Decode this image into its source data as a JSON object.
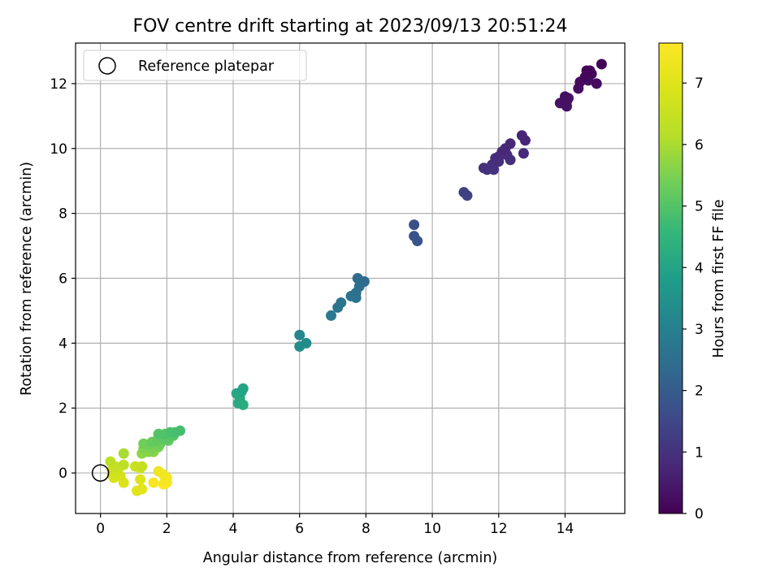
{
  "chart_data": {
    "type": "scatter",
    "title": "FOV centre drift starting at 2023/09/13 20:51:24",
    "xlabel": "Angular distance from reference (arcmin)",
    "ylabel": "Rotation from reference (arcmin)",
    "xlim": [
      -0.75,
      15.8
    ],
    "ylim": [
      -1.25,
      13.25
    ],
    "xticks": [
      0,
      2,
      4,
      6,
      8,
      10,
      12,
      14
    ],
    "yticks": [
      0,
      2,
      4,
      6,
      8,
      10,
      12
    ],
    "grid": true,
    "legend": {
      "position": "top-left",
      "entries": [
        "Reference platepar"
      ]
    },
    "reference_point": {
      "x": 0,
      "y": 0,
      "marker": "open-circle"
    },
    "colorbar": {
      "label": "Hours from first FF file",
      "range": [
        0,
        7.65
      ],
      "ticks": [
        0,
        1,
        2,
        3,
        4,
        5,
        6,
        7
      ],
      "colormap": "viridis"
    },
    "points": [
      {
        "x": 15.1,
        "y": 12.6,
        "c": 0.05
      },
      {
        "x": 14.75,
        "y": 12.4,
        "c": 0.1
      },
      {
        "x": 14.65,
        "y": 12.4,
        "c": 0.12
      },
      {
        "x": 14.6,
        "y": 12.2,
        "c": 0.15
      },
      {
        "x": 14.8,
        "y": 12.3,
        "c": 0.18
      },
      {
        "x": 14.45,
        "y": 12.05,
        "c": 0.2
      },
      {
        "x": 14.95,
        "y": 12.0,
        "c": 0.22
      },
      {
        "x": 14.7,
        "y": 12.1,
        "c": 0.25
      },
      {
        "x": 14.4,
        "y": 11.85,
        "c": 0.28
      },
      {
        "x": 14.0,
        "y": 11.6,
        "c": 0.3
      },
      {
        "x": 14.05,
        "y": 11.45,
        "c": 0.33
      },
      {
        "x": 13.85,
        "y": 11.4,
        "c": 0.35
      },
      {
        "x": 14.05,
        "y": 11.3,
        "c": 0.38
      },
      {
        "x": 14.1,
        "y": 11.55,
        "c": 0.4
      },
      {
        "x": 12.7,
        "y": 10.4,
        "c": 0.7
      },
      {
        "x": 12.8,
        "y": 10.25,
        "c": 0.72
      },
      {
        "x": 12.35,
        "y": 10.15,
        "c": 0.75
      },
      {
        "x": 12.2,
        "y": 10.0,
        "c": 0.78
      },
      {
        "x": 12.1,
        "y": 9.9,
        "c": 0.8
      },
      {
        "x": 12.75,
        "y": 9.85,
        "c": 0.82
      },
      {
        "x": 12.25,
        "y": 9.8,
        "c": 0.85
      },
      {
        "x": 12.0,
        "y": 9.75,
        "c": 0.88
      },
      {
        "x": 11.9,
        "y": 9.7,
        "c": 0.9
      },
      {
        "x": 12.35,
        "y": 9.65,
        "c": 0.92
      },
      {
        "x": 12.0,
        "y": 9.6,
        "c": 0.95
      },
      {
        "x": 11.8,
        "y": 9.5,
        "c": 0.98
      },
      {
        "x": 11.55,
        "y": 9.4,
        "c": 1.0
      },
      {
        "x": 11.85,
        "y": 9.35,
        "c": 1.02
      },
      {
        "x": 11.65,
        "y": 9.35,
        "c": 1.05
      },
      {
        "x": 10.95,
        "y": 8.65,
        "c": 1.3
      },
      {
        "x": 11.05,
        "y": 8.55,
        "c": 1.35
      },
      {
        "x": 9.45,
        "y": 7.65,
        "c": 1.7
      },
      {
        "x": 9.45,
        "y": 7.3,
        "c": 1.75
      },
      {
        "x": 9.55,
        "y": 7.15,
        "c": 1.8
      },
      {
        "x": 7.75,
        "y": 6.0,
        "c": 2.4
      },
      {
        "x": 7.95,
        "y": 5.9,
        "c": 2.45
      },
      {
        "x": 7.8,
        "y": 5.75,
        "c": 2.5
      },
      {
        "x": 7.7,
        "y": 5.55,
        "c": 2.55
      },
      {
        "x": 7.55,
        "y": 5.45,
        "c": 2.6
      },
      {
        "x": 7.7,
        "y": 5.4,
        "c": 2.62
      },
      {
        "x": 7.25,
        "y": 5.25,
        "c": 2.68
      },
      {
        "x": 7.15,
        "y": 5.1,
        "c": 2.72
      },
      {
        "x": 6.95,
        "y": 4.85,
        "c": 2.8
      },
      {
        "x": 6.0,
        "y": 4.25,
        "c": 3.2
      },
      {
        "x": 6.2,
        "y": 4.0,
        "c": 3.3
      },
      {
        "x": 6.0,
        "y": 3.9,
        "c": 3.35
      },
      {
        "x": 4.3,
        "y": 2.6,
        "c": 4.0
      },
      {
        "x": 4.25,
        "y": 2.5,
        "c": 4.05
      },
      {
        "x": 4.1,
        "y": 2.45,
        "c": 4.1
      },
      {
        "x": 4.2,
        "y": 2.3,
        "c": 4.15
      },
      {
        "x": 4.15,
        "y": 2.15,
        "c": 4.2
      },
      {
        "x": 4.3,
        "y": 2.1,
        "c": 4.25
      },
      {
        "x": 2.4,
        "y": 1.3,
        "c": 4.8
      },
      {
        "x": 2.25,
        "y": 1.25,
        "c": 4.85
      },
      {
        "x": 2.1,
        "y": 1.25,
        "c": 4.9
      },
      {
        "x": 1.95,
        "y": 1.2,
        "c": 4.95
      },
      {
        "x": 1.75,
        "y": 1.2,
        "c": 5.0
      },
      {
        "x": 2.2,
        "y": 1.15,
        "c": 5.05
      },
      {
        "x": 1.95,
        "y": 1.05,
        "c": 5.1
      },
      {
        "x": 2.05,
        "y": 1.0,
        "c": 5.15
      },
      {
        "x": 1.7,
        "y": 1.0,
        "c": 5.2
      },
      {
        "x": 1.55,
        "y": 0.95,
        "c": 5.25
      },
      {
        "x": 1.8,
        "y": 0.9,
        "c": 5.3
      },
      {
        "x": 1.3,
        "y": 0.9,
        "c": 5.35
      },
      {
        "x": 1.45,
        "y": 0.85,
        "c": 5.4
      },
      {
        "x": 1.75,
        "y": 0.8,
        "c": 5.45
      },
      {
        "x": 1.55,
        "y": 0.75,
        "c": 5.5
      },
      {
        "x": 1.3,
        "y": 0.75,
        "c": 5.55
      },
      {
        "x": 1.45,
        "y": 0.65,
        "c": 5.6
      },
      {
        "x": 1.6,
        "y": 0.65,
        "c": 5.65
      },
      {
        "x": 1.25,
        "y": 0.6,
        "c": 5.7
      },
      {
        "x": 0.7,
        "y": 0.6,
        "c": 6.0
      },
      {
        "x": 0.3,
        "y": 0.35,
        "c": 6.3
      },
      {
        "x": 0.7,
        "y": 0.25,
        "c": 6.35
      },
      {
        "x": 0.45,
        "y": 0.2,
        "c": 6.4
      },
      {
        "x": 1.25,
        "y": 0.2,
        "c": 6.45
      },
      {
        "x": 1.05,
        "y": 0.2,
        "c": 6.5
      },
      {
        "x": 0.55,
        "y": 0.15,
        "c": 6.55
      },
      {
        "x": 1.2,
        "y": 0.15,
        "c": 6.6
      },
      {
        "x": 0.35,
        "y": 0.1,
        "c": 6.65
      },
      {
        "x": 0.5,
        "y": 0.0,
        "c": 6.7
      },
      {
        "x": 0.35,
        "y": -0.05,
        "c": 6.75
      },
      {
        "x": 0.6,
        "y": -0.1,
        "c": 6.8
      },
      {
        "x": 0.4,
        "y": -0.15,
        "c": 6.85
      },
      {
        "x": 0.7,
        "y": -0.3,
        "c": 6.9
      },
      {
        "x": 1.2,
        "y": -0.2,
        "c": 6.95
      },
      {
        "x": 1.1,
        "y": -0.55,
        "c": 7.0
      },
      {
        "x": 1.25,
        "y": -0.5,
        "c": 7.05
      },
      {
        "x": 1.75,
        "y": 0.05,
        "c": 7.35
      },
      {
        "x": 1.9,
        "y": -0.05,
        "c": 7.4
      },
      {
        "x": 2.0,
        "y": -0.15,
        "c": 7.45
      },
      {
        "x": 1.95,
        "y": -0.25,
        "c": 7.5
      },
      {
        "x": 1.6,
        "y": -0.3,
        "c": 7.55
      },
      {
        "x": 2.0,
        "y": -0.3,
        "c": 7.6
      },
      {
        "x": 1.9,
        "y": -0.35,
        "c": 7.65
      }
    ]
  }
}
